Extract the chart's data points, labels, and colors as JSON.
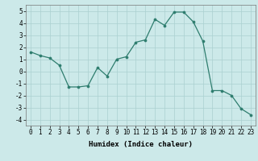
{
  "x": [
    0,
    1,
    2,
    3,
    4,
    5,
    6,
    7,
    8,
    9,
    10,
    11,
    12,
    13,
    14,
    15,
    16,
    17,
    18,
    19,
    20,
    21,
    22,
    23
  ],
  "y": [
    1.6,
    1.3,
    1.1,
    0.5,
    -1.3,
    -1.3,
    -1.2,
    0.3,
    -0.4,
    1.0,
    1.2,
    2.4,
    2.6,
    4.3,
    3.8,
    4.9,
    4.9,
    4.1,
    2.5,
    -1.6,
    -1.6,
    -2.0,
    -3.1,
    -3.6
  ],
  "line_color": "#2e7d6e",
  "marker_color": "#2e7d6e",
  "bg_color": "#cce9e9",
  "grid_color": "#aad0d0",
  "xlabel": "Humidex (Indice chaleur)",
  "ylim": [
    -4.5,
    5.5
  ],
  "xlim": [
    -0.5,
    23.5
  ],
  "yticks": [
    -4,
    -3,
    -2,
    -1,
    0,
    1,
    2,
    3,
    4,
    5
  ],
  "xticks": [
    0,
    1,
    2,
    3,
    4,
    5,
    6,
    7,
    8,
    9,
    10,
    11,
    12,
    13,
    14,
    15,
    16,
    17,
    18,
    19,
    20,
    21,
    22,
    23
  ],
  "label_fontsize": 6.5,
  "tick_fontsize": 5.5
}
